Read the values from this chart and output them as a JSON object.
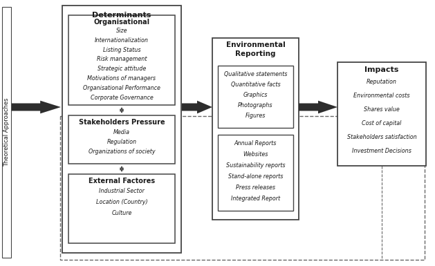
{
  "bg_color": "#ffffff",
  "text_color": "#1a1a1a",
  "border_color": "#444444",
  "dashed_color": "#555555",
  "arrow_color": "#2a2a2a",
  "theoretical_label": "Theoretical Approaches",
  "determinants_title": "Determinants",
  "org_title": "Organisational",
  "org_items": [
    "Size",
    "Internationalization",
    "Listing Status",
    "Risk management",
    "Strategic attitude",
    "Motivations of managers",
    "Organisational Performance",
    "Corporate Governance"
  ],
  "stake_title": "Stakeholders Pressure",
  "stake_items": [
    "Media",
    "Regulation",
    "Organizations of society"
  ],
  "ext_title": "External Factores",
  "ext_items": [
    "Industrial Sector",
    "Location (Country)",
    "Culture"
  ],
  "env_title": "Environmental\nReporting",
  "env_top_items": [
    "Qualitative statements",
    "Quantitative facts",
    "Graphics",
    "Photographs",
    "Figures"
  ],
  "env_bot_items": [
    "Annual Reports",
    "Websites",
    "Sustainability reports",
    "Stand-alone reports",
    "Press releases",
    "Integrated Report"
  ],
  "impacts_title": "Impacts",
  "impacts_items": [
    "Reputation",
    "Environmental costs",
    "Shares value",
    "Cost of capital",
    "Stakeholders satisfaction",
    "Investment Decisions"
  ]
}
